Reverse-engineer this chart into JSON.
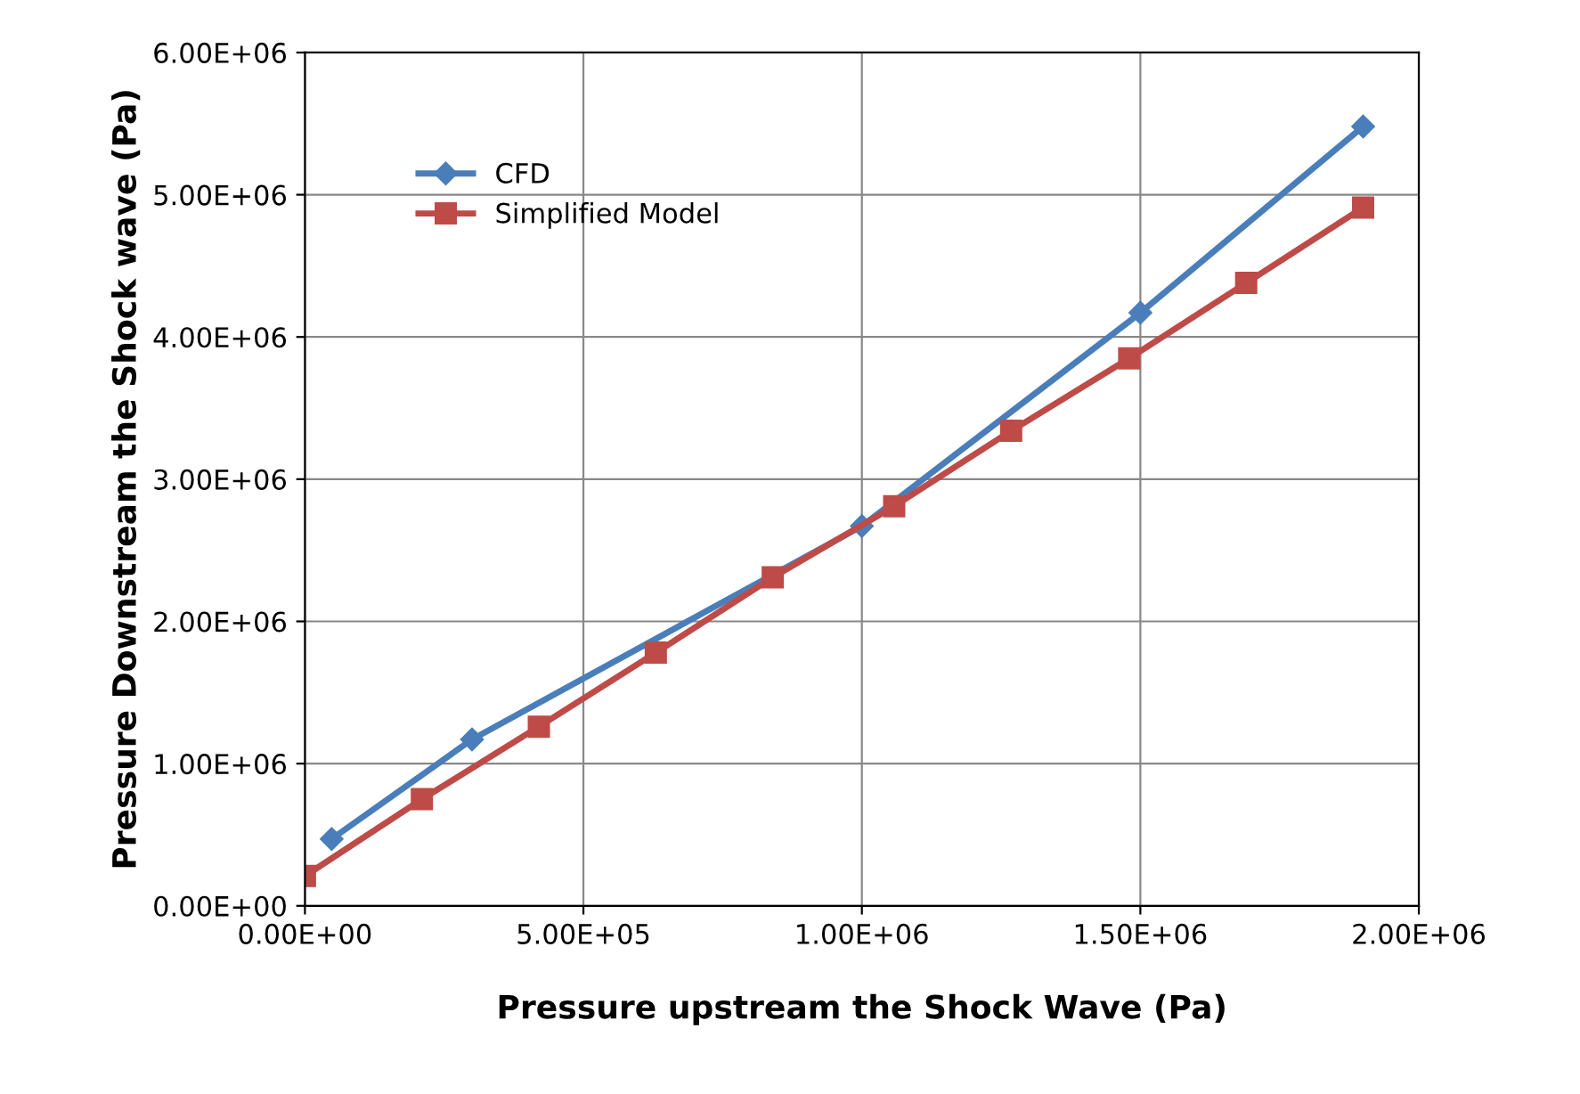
{
  "chart_data": {
    "type": "line",
    "xlabel": "Pressure upstream the Shock Wave (Pa)",
    "ylabel": "Pressure Downstream the Shock wave (Pa)",
    "xlim": [
      0,
      2000000
    ],
    "ylim": [
      0,
      6000000
    ],
    "xticks": [
      {
        "value": 0,
        "label": "0.00E+00"
      },
      {
        "value": 500000,
        "label": "5.00E+05"
      },
      {
        "value": 1000000,
        "label": "1.00E+06"
      },
      {
        "value": 1500000,
        "label": "1.50E+06"
      },
      {
        "value": 2000000,
        "label": "2.00E+06"
      }
    ],
    "yticks": [
      {
        "value": 0,
        "label": "0.00E+00"
      },
      {
        "value": 1000000,
        "label": "1.00E+06"
      },
      {
        "value": 2000000,
        "label": "2.00E+06"
      },
      {
        "value": 3000000,
        "label": "3.00E+06"
      },
      {
        "value": 4000000,
        "label": "4.00E+06"
      },
      {
        "value": 5000000,
        "label": "5.00E+06"
      },
      {
        "value": 6000000,
        "label": "6.00E+06"
      }
    ],
    "grid": true,
    "legend": "top left",
    "series": [
      {
        "name": "CFD",
        "color": "#4a7ebb",
        "marker": "diamond",
        "x": [
          48000,
          300000,
          1000000,
          1500000,
          1900000
        ],
        "values": [
          470000,
          1170000,
          2670000,
          4170000,
          5480000
        ]
      },
      {
        "name": "Simplified Model",
        "color": "#be4b48",
        "marker": "square",
        "x": [
          0,
          210000,
          420000,
          630000,
          840000,
          1058000,
          1268000,
          1480000,
          1690000,
          1900000
        ],
        "values": [
          210000,
          750000,
          1260000,
          1780000,
          2310000,
          2810000,
          3340000,
          3850000,
          4380000,
          4910000
        ]
      }
    ]
  }
}
